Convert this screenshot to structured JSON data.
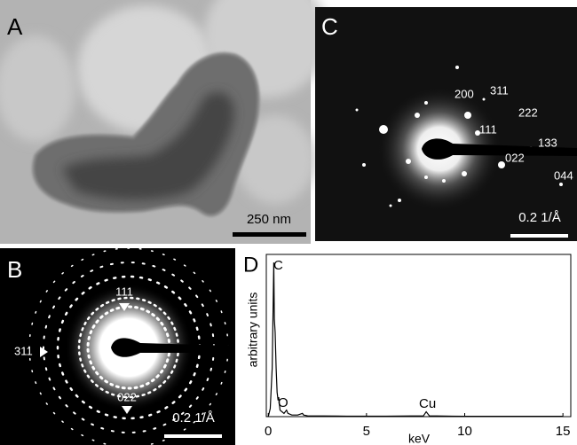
{
  "panels": {
    "a": {
      "label": "A",
      "scale_bar": "250 nm"
    },
    "b": {
      "label": "B",
      "scale_bar": "0.2 1/Å",
      "indices": [
        "111",
        "311",
        "022"
      ]
    },
    "c": {
      "label": "C",
      "scale_bar": "0.2 1/Å",
      "indices": [
        "200",
        "311",
        "111",
        "222",
        "133",
        "022",
        "044"
      ]
    },
    "d": {
      "label": "D"
    }
  },
  "chart_data": {
    "type": "line",
    "x_label": "keV",
    "y_label": "arbitrary units",
    "xlim": [
      -0.1,
      15.4
    ],
    "xticks": [
      0,
      5,
      10,
      15
    ],
    "ylim": [
      0,
      1
    ],
    "color": "#000000",
    "annotations": [
      "C",
      "O",
      "Cu"
    ],
    "x": [
      0,
      0.1,
      0.2,
      0.25,
      0.28,
      0.31,
      0.35,
      0.4,
      0.45,
      0.5,
      0.53,
      0.56,
      0.6,
      0.8,
      0.93,
      1.0,
      1.2,
      1.5,
      1.74,
      1.8,
      2,
      4,
      6,
      7.9,
      8.04,
      8.2,
      10,
      12,
      15
    ],
    "values": [
      0,
      0.05,
      0.3,
      0.7,
      0.95,
      0.6,
      0.52,
      0.3,
      0.15,
      0.1,
      0.12,
      0.08,
      0.04,
      0.02,
      0.04,
      0.02,
      0.01,
      0.01,
      0.02,
      0.01,
      0.005,
      0.003,
      0.003,
      0.005,
      0.03,
      0.005,
      0.002,
      0.002,
      0.002
    ]
  }
}
